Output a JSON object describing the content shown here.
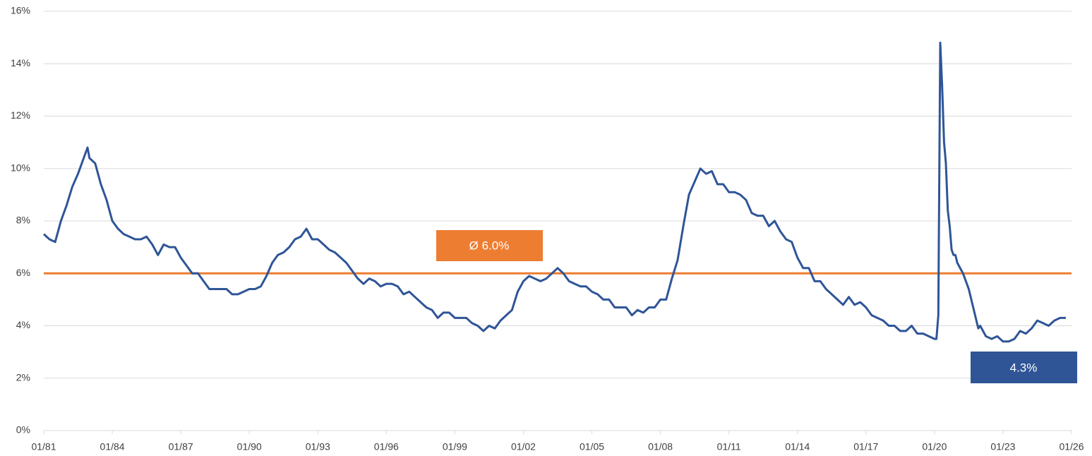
{
  "chart_data": {
    "type": "line",
    "color": "#2f5597",
    "grid": true,
    "x": [
      1981,
      1981.25,
      1981.5,
      1981.75,
      1982,
      1982.25,
      1982.5,
      1982.75,
      1982.917,
      1983,
      1983.25,
      1983.5,
      1983.75,
      1984,
      1984.25,
      1984.5,
      1984.75,
      1985,
      1985.25,
      1985.5,
      1985.75,
      1986,
      1986.25,
      1986.5,
      1986.75,
      1987,
      1987.25,
      1987.5,
      1987.75,
      1988,
      1988.25,
      1988.5,
      1988.75,
      1989,
      1989.25,
      1989.5,
      1989.75,
      1990,
      1990.25,
      1990.5,
      1990.75,
      1991,
      1991.25,
      1991.5,
      1991.75,
      1992,
      1992.25,
      1992.5,
      1992.75,
      1993,
      1993.25,
      1993.5,
      1993.75,
      1994,
      1994.25,
      1994.5,
      1994.75,
      1995,
      1995.25,
      1995.5,
      1995.75,
      1996,
      1996.25,
      1996.5,
      1996.75,
      1997,
      1997.25,
      1997.5,
      1997.75,
      1998,
      1998.25,
      1998.5,
      1998.75,
      1999,
      1999.25,
      1999.5,
      1999.75,
      2000,
      2000.25,
      2000.5,
      2000.75,
      2001,
      2001.25,
      2001.5,
      2001.75,
      2002,
      2002.25,
      2002.5,
      2002.75,
      2003,
      2003.25,
      2003.5,
      2003.75,
      2004,
      2004.25,
      2004.5,
      2004.75,
      2005,
      2005.25,
      2005.5,
      2005.75,
      2006,
      2006.25,
      2006.5,
      2006.75,
      2007,
      2007.25,
      2007.5,
      2007.75,
      2008,
      2008.25,
      2008.5,
      2008.75,
      2009,
      2009.25,
      2009.5,
      2009.75,
      2010,
      2010.25,
      2010.5,
      2010.75,
      2011,
      2011.25,
      2011.5,
      2011.75,
      2012,
      2012.25,
      2012.5,
      2012.75,
      2013,
      2013.25,
      2013.5,
      2013.75,
      2014,
      2014.25,
      2014.5,
      2014.75,
      2015,
      2015.25,
      2015.5,
      2015.75,
      2016,
      2016.25,
      2016.5,
      2016.75,
      2017,
      2017.25,
      2017.5,
      2017.75,
      2018,
      2018.25,
      2018.5,
      2018.75,
      2019,
      2019.25,
      2019.5,
      2019.75,
      2020,
      2020.083,
      2020.167,
      2020.25,
      2020.333,
      2020.417,
      2020.5,
      2020.583,
      2020.667,
      2020.75,
      2020.833,
      2020.917,
      2021,
      2021.25,
      2021.5,
      2021.75,
      2021.917,
      2022,
      2022.25,
      2022.5,
      2022.75,
      2023,
      2023.25,
      2023.5,
      2023.75,
      2024,
      2024.25,
      2024.5,
      2024.75,
      2025,
      2025.25,
      2025.5,
      2025.75
    ],
    "values": [
      7.5,
      7.3,
      7.2,
      8.0,
      8.6,
      9.3,
      9.8,
      10.4,
      10.8,
      10.4,
      10.2,
      9.4,
      8.8,
      8.0,
      7.7,
      7.5,
      7.4,
      7.3,
      7.3,
      7.4,
      7.1,
      6.7,
      7.1,
      7.0,
      7.0,
      6.6,
      6.3,
      6.0,
      6.0,
      5.7,
      5.4,
      5.4,
      5.4,
      5.4,
      5.2,
      5.2,
      5.3,
      5.4,
      5.4,
      5.5,
      5.9,
      6.4,
      6.7,
      6.8,
      7.0,
      7.3,
      7.4,
      7.7,
      7.3,
      7.3,
      7.1,
      6.9,
      6.8,
      6.6,
      6.4,
      6.1,
      5.8,
      5.6,
      5.8,
      5.7,
      5.5,
      5.6,
      5.6,
      5.5,
      5.2,
      5.3,
      5.1,
      4.9,
      4.7,
      4.6,
      4.3,
      4.5,
      4.5,
      4.3,
      4.3,
      4.3,
      4.1,
      4.0,
      3.8,
      4.0,
      3.9,
      4.2,
      4.4,
      4.6,
      5.3,
      5.7,
      5.9,
      5.8,
      5.7,
      5.8,
      6.0,
      6.2,
      6.0,
      5.7,
      5.6,
      5.5,
      5.5,
      5.3,
      5.2,
      5.0,
      5.0,
      4.7,
      4.7,
      4.7,
      4.4,
      4.6,
      4.5,
      4.7,
      4.7,
      5.0,
      5.0,
      5.8,
      6.5,
      7.8,
      9.0,
      9.5,
      10.0,
      9.8,
      9.9,
      9.4,
      9.4,
      9.1,
      9.1,
      9.0,
      8.8,
      8.3,
      8.2,
      8.2,
      7.8,
      8.0,
      7.6,
      7.3,
      7.2,
      6.6,
      6.2,
      6.2,
      5.7,
      5.7,
      5.4,
      5.2,
      5.0,
      4.8,
      5.1,
      4.8,
      4.9,
      4.7,
      4.4,
      4.3,
      4.2,
      4.0,
      4.0,
      3.8,
      3.8,
      4.0,
      3.7,
      3.7,
      3.6,
      3.5,
      3.5,
      4.4,
      14.8,
      13.2,
      11.0,
      10.2,
      8.4,
      7.8,
      6.9,
      6.7,
      6.7,
      6.4,
      6.0,
      5.4,
      4.5,
      3.9,
      4.0,
      3.6,
      3.5,
      3.6,
      3.4,
      3.4,
      3.5,
      3.8,
      3.7,
      3.9,
      4.2,
      4.1,
      4.0,
      4.2,
      4.3,
      4.3
    ],
    "xlim": [
      1981,
      2026
    ],
    "xticks": [
      {
        "value": 1981,
        "label": "01/81"
      },
      {
        "value": 1984,
        "label": "01/84"
      },
      {
        "value": 1987,
        "label": "01/87"
      },
      {
        "value": 1990,
        "label": "01/90"
      },
      {
        "value": 1993,
        "label": "01/93"
      },
      {
        "value": 1996,
        "label": "01/96"
      },
      {
        "value": 1999,
        "label": "01/99"
      },
      {
        "value": 2002,
        "label": "01/02"
      },
      {
        "value": 2005,
        "label": "01/05"
      },
      {
        "value": 2008,
        "label": "01/08"
      },
      {
        "value": 2011,
        "label": "01/11"
      },
      {
        "value": 2014,
        "label": "01/14"
      },
      {
        "value": 2017,
        "label": "01/17"
      },
      {
        "value": 2020,
        "label": "01/20"
      },
      {
        "value": 2023,
        "label": "01/23"
      },
      {
        "value": 2026,
        "label": "01/26"
      }
    ],
    "ylim": [
      0,
      16
    ],
    "yticks": [
      {
        "value": 0,
        "label": "0%"
      },
      {
        "value": 2,
        "label": "2%"
      },
      {
        "value": 4,
        "label": "4%"
      },
      {
        "value": 6,
        "label": "6%"
      },
      {
        "value": 8,
        "label": "8%"
      },
      {
        "value": 10,
        "label": "10%"
      },
      {
        "value": 12,
        "label": "12%"
      },
      {
        "value": 14,
        "label": "14%"
      },
      {
        "value": 16,
        "label": "16%"
      }
    ],
    "average": {
      "value": 6.0,
      "label": "Ø 6.0%",
      "color": "#ed7d31"
    },
    "last_label": "4.3%"
  }
}
